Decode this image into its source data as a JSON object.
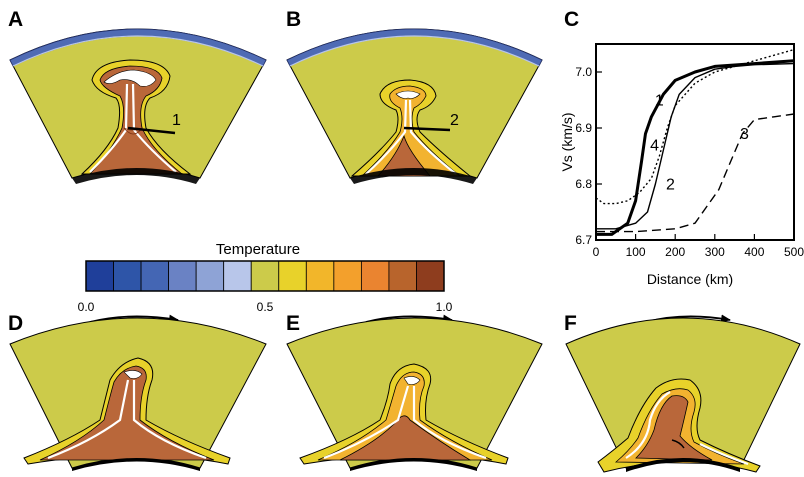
{
  "panels": {
    "a": "A",
    "b": "B",
    "c": "C",
    "d": "D",
    "e": "E",
    "f": "F"
  },
  "annotations": {
    "profile_1": "1",
    "profile_2": "2"
  },
  "colorbar": {
    "title": "Temperature",
    "ticks": [
      "0.0",
      "0.5",
      "1.0"
    ],
    "colors": [
      "#1f3f9a",
      "#2e55a8",
      "#4466b4",
      "#6a82c4",
      "#8ea3d6",
      "#b8c6ea",
      "#cccb4a",
      "#e8d22a",
      "#f2b62a",
      "#f3a02c",
      "#ea8430",
      "#b8642c",
      "#8e3d1e"
    ]
  },
  "colors": {
    "mantle": "#cccb4a",
    "plume_core": "#b9673a",
    "plume_mid": "#f2b330",
    "plume_outer": "#e8d22a",
    "lid": "#4f6bb4"
  },
  "chart_data": {
    "type": "line",
    "title": "",
    "xlabel": "Distance (km)",
    "ylabel": "Vs (km/s)",
    "xlim": [
      0,
      500
    ],
    "ylim": [
      6.7,
      7.05
    ],
    "xticks": [
      "0",
      "100",
      "200",
      "300",
      "400",
      "500"
    ],
    "yticks": [
      "6.7",
      "6.8",
      "6.9",
      "7.0"
    ],
    "series": [
      {
        "name": "1",
        "style": "thick-solid",
        "x": [
          0,
          40,
          80,
          100,
          115,
          125,
          140,
          170,
          200,
          250,
          300,
          400,
          500
        ],
        "y": [
          6.71,
          6.71,
          6.73,
          6.77,
          6.84,
          6.89,
          6.92,
          6.96,
          6.985,
          7.0,
          7.01,
          7.015,
          7.02
        ]
      },
      {
        "name": "4",
        "style": "dotted",
        "x": [
          0,
          20,
          50,
          80,
          110,
          140,
          160,
          180,
          200,
          250,
          300,
          400,
          500
        ],
        "y": [
          6.775,
          6.765,
          6.765,
          6.77,
          6.785,
          6.81,
          6.85,
          6.9,
          6.94,
          6.98,
          7.0,
          7.02,
          7.04
        ]
      },
      {
        "name": "2",
        "style": "solid",
        "x": [
          0,
          50,
          100,
          130,
          150,
          170,
          190,
          210,
          250,
          300,
          350,
          400,
          500
        ],
        "y": [
          6.72,
          6.72,
          6.73,
          6.75,
          6.8,
          6.86,
          6.92,
          6.96,
          6.99,
          7.005,
          7.01,
          7.013,
          7.015
        ]
      },
      {
        "name": "3",
        "style": "dashed",
        "x": [
          0,
          100,
          200,
          250,
          280,
          310,
          340,
          370,
          400,
          450,
          500
        ],
        "y": [
          6.715,
          6.715,
          6.72,
          6.73,
          6.76,
          6.79,
          6.84,
          6.89,
          6.915,
          6.92,
          6.925
        ]
      }
    ],
    "labels": [
      {
        "text": "1",
        "x": 160,
        "y": 6.94
      },
      {
        "text": "4",
        "x": 148,
        "y": 6.86
      },
      {
        "text": "2",
        "x": 188,
        "y": 6.79
      },
      {
        "text": "3",
        "x": 375,
        "y": 6.88
      }
    ]
  }
}
